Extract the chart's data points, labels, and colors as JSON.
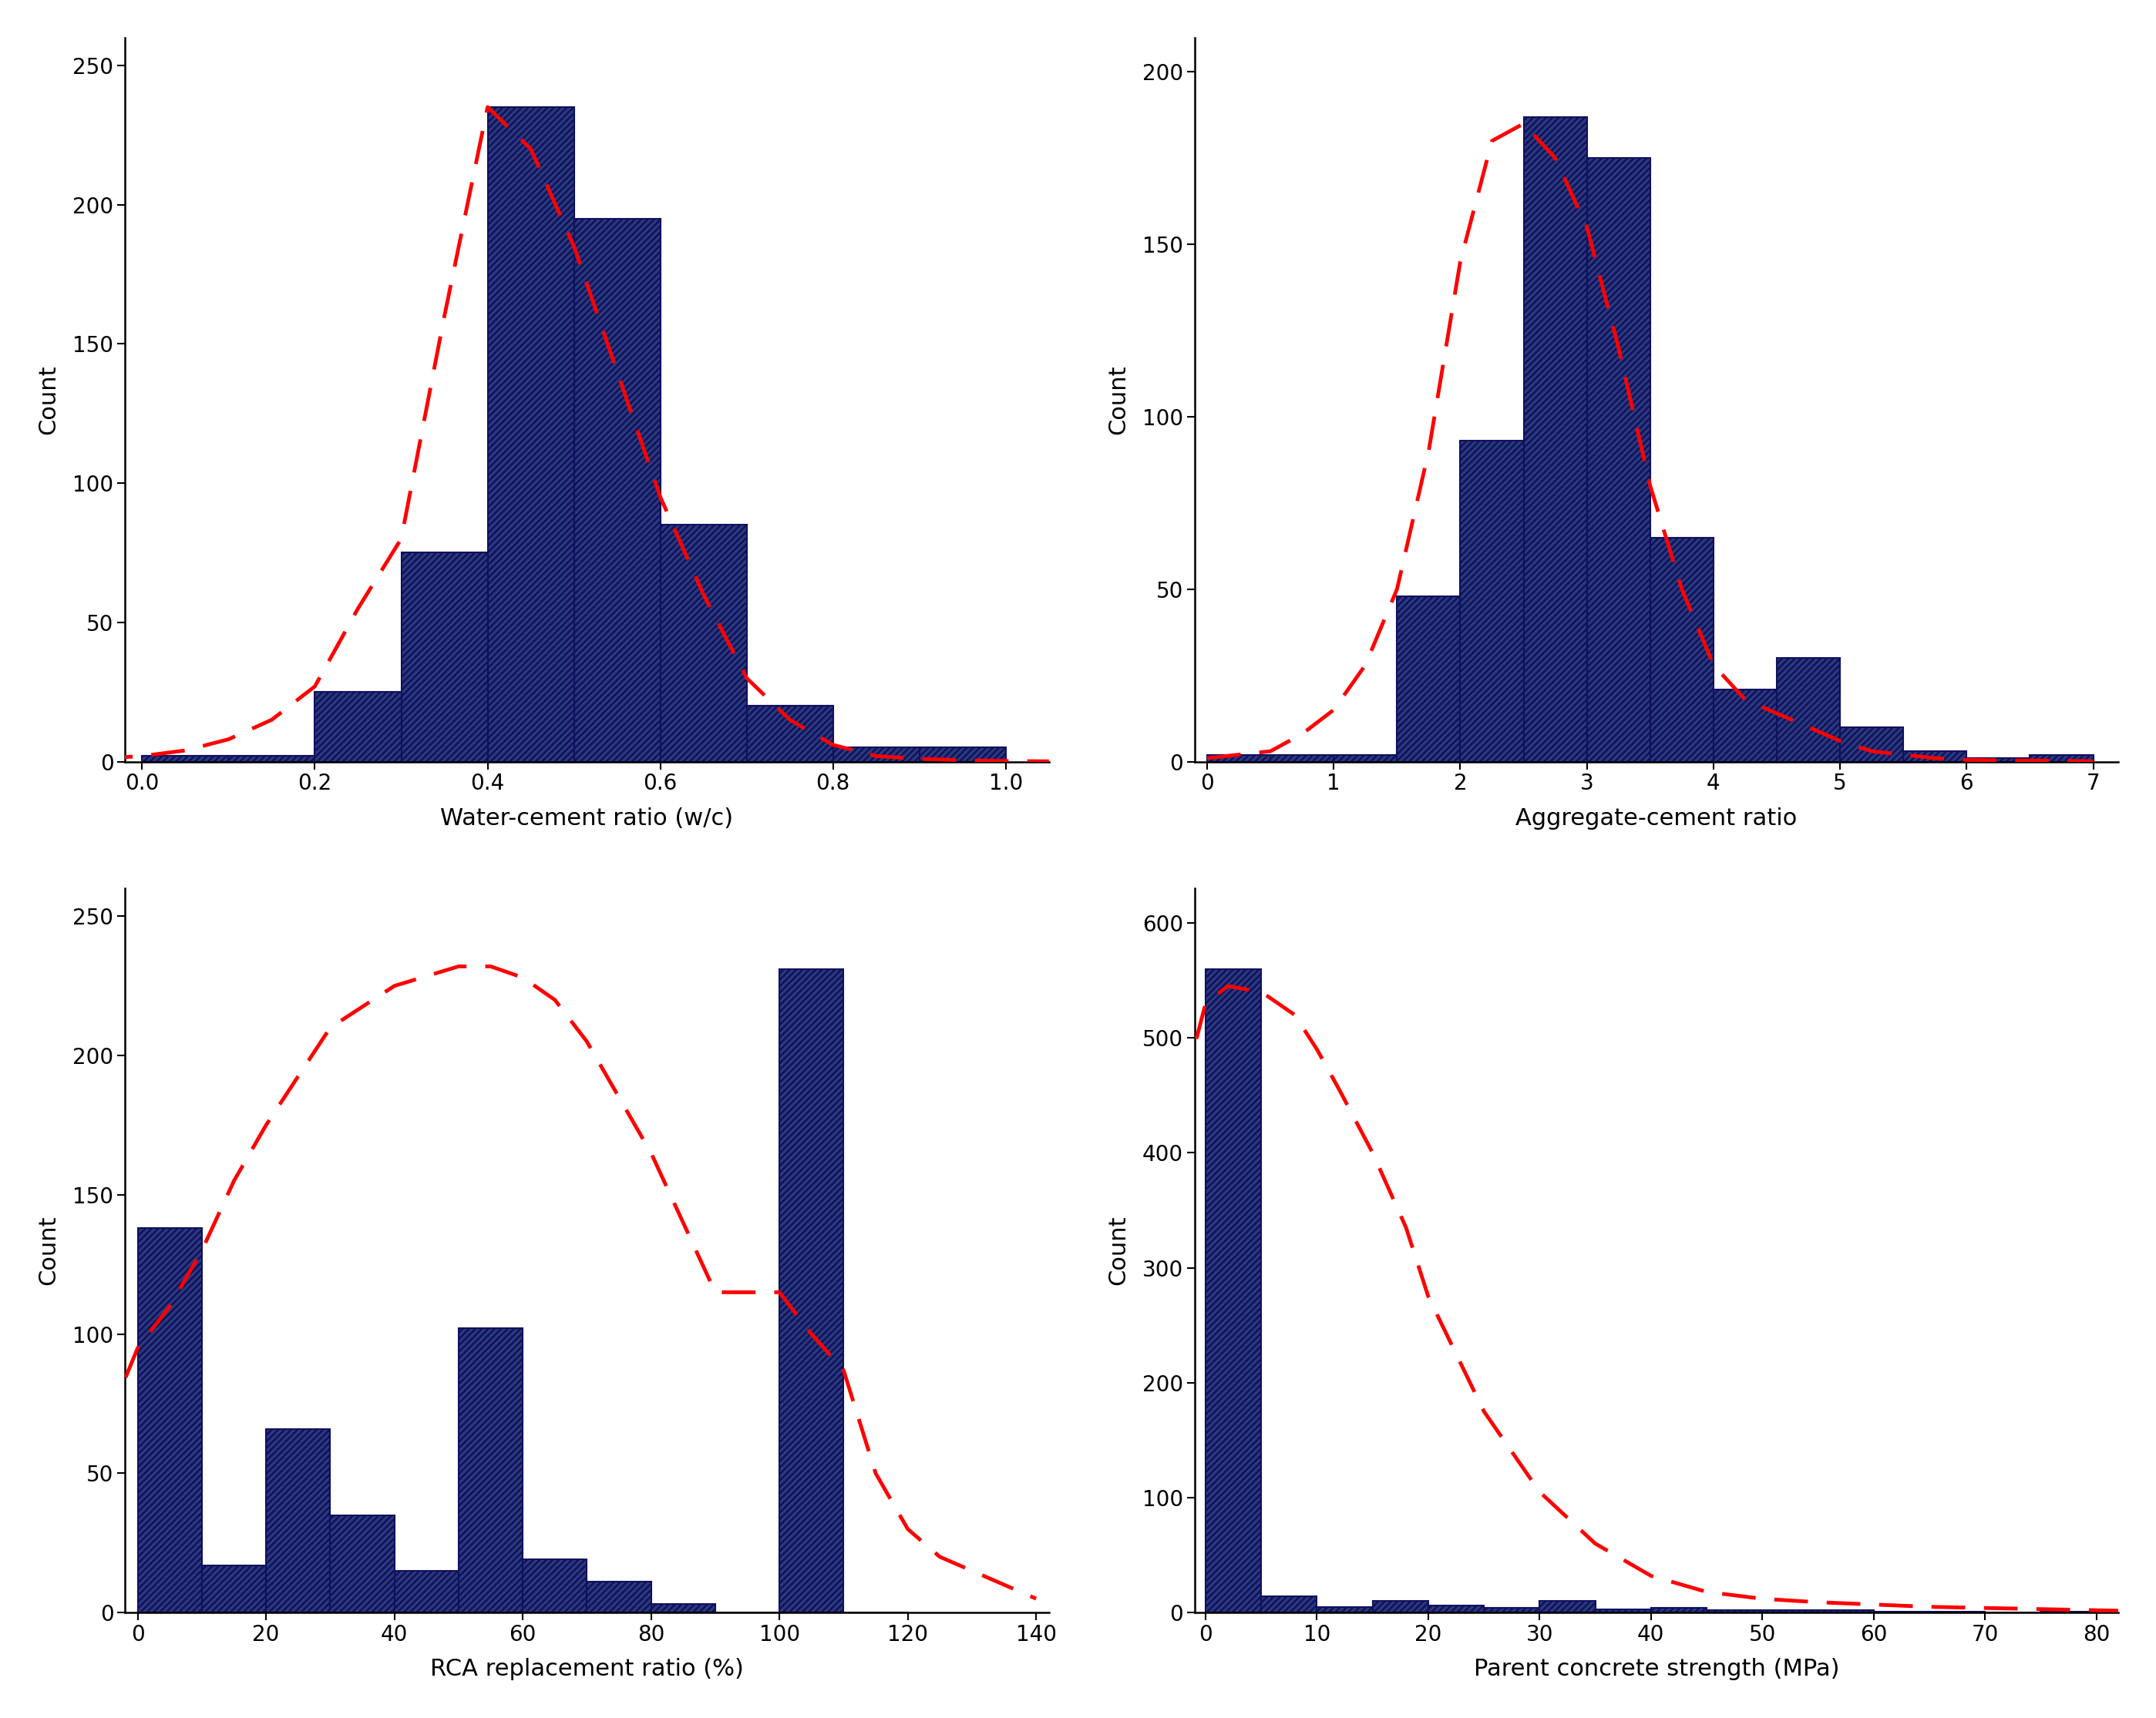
{
  "plots": [
    {
      "xlabel": "Water-cement ratio (w/c)",
      "ylabel": "Count",
      "xlim": [
        -0.02,
        1.05
      ],
      "ylim": [
        0,
        260
      ],
      "xticks": [
        0.0,
        0.2,
        0.4,
        0.6,
        0.8,
        1.0
      ],
      "yticks": [
        0,
        50,
        100,
        150,
        200,
        250
      ],
      "bar_edges": [
        0.0,
        0.1,
        0.2,
        0.3,
        0.4,
        0.5,
        0.6,
        0.7,
        0.8,
        0.9,
        1.0
      ],
      "bar_heights": [
        2,
        2,
        25,
        75,
        235,
        195,
        85,
        20,
        5,
        5
      ],
      "kde_x": [
        -0.05,
        0.0,
        0.05,
        0.1,
        0.15,
        0.2,
        0.25,
        0.3,
        0.35,
        0.4,
        0.45,
        0.5,
        0.55,
        0.6,
        0.65,
        0.7,
        0.75,
        0.8,
        0.85,
        0.9,
        0.95,
        1.0,
        1.05
      ],
      "kde_y": [
        1,
        2,
        4,
        8,
        15,
        27,
        55,
        80,
        160,
        235,
        220,
        185,
        140,
        95,
        60,
        30,
        15,
        6,
        2,
        1,
        0.5,
        0.2,
        0.1
      ]
    },
    {
      "xlabel": "Aggregate-cement ratio",
      "ylabel": "Count",
      "xlim": [
        -0.1,
        7.2
      ],
      "ylim": [
        0,
        210
      ],
      "xticks": [
        0,
        1,
        2,
        3,
        4,
        5,
        6,
        7
      ],
      "yticks": [
        0,
        50,
        100,
        150,
        200
      ],
      "bar_edges": [
        0.0,
        0.5,
        1.0,
        1.5,
        2.0,
        2.5,
        3.0,
        3.5,
        4.0,
        4.5,
        5.0,
        5.5,
        6.0,
        6.5,
        7.0
      ],
      "bar_heights": [
        2,
        2,
        2,
        48,
        93,
        187,
        175,
        65,
        21,
        30,
        10,
        3,
        1,
        2
      ],
      "kde_x": [
        0.0,
        0.25,
        0.5,
        0.75,
        1.0,
        1.25,
        1.5,
        1.75,
        2.0,
        2.25,
        2.5,
        2.75,
        3.0,
        3.25,
        3.5,
        3.75,
        4.0,
        4.25,
        4.5,
        4.75,
        5.0,
        5.25,
        5.5,
        5.75,
        6.0,
        6.5,
        7.0
      ],
      "kde_y": [
        1,
        2,
        3,
        8,
        15,
        28,
        50,
        90,
        145,
        180,
        185,
        175,
        155,
        120,
        80,
        50,
        28,
        18,
        14,
        10,
        6,
        3,
        2,
        1,
        0.5,
        0.3,
        0.1
      ]
    },
    {
      "xlabel": "RCA replacement ratio (%)",
      "ylabel": "Count",
      "xlim": [
        -2,
        142
      ],
      "ylim": [
        0,
        260
      ],
      "xticks": [
        0,
        20,
        40,
        60,
        80,
        100,
        120,
        140
      ],
      "yticks": [
        0,
        50,
        100,
        150,
        200,
        250
      ],
      "bar_edges": [
        0,
        10,
        20,
        30,
        40,
        50,
        60,
        70,
        80,
        90,
        100,
        110,
        120
      ],
      "bar_heights": [
        138,
        17,
        66,
        35,
        15,
        102,
        19,
        11,
        3,
        0,
        231,
        0
      ],
      "kde_x": [
        -5,
        0,
        5,
        10,
        15,
        20,
        30,
        40,
        50,
        55,
        60,
        65,
        70,
        75,
        80,
        85,
        90,
        95,
        100,
        105,
        110,
        115,
        120,
        125,
        130,
        135,
        140
      ],
      "kde_y": [
        67,
        95,
        110,
        130,
        155,
        175,
        210,
        225,
        232,
        232,
        228,
        220,
        205,
        185,
        165,
        140,
        115,
        115,
        115,
        100,
        87,
        50,
        30,
        20,
        15,
        10,
        5
      ]
    },
    {
      "xlabel": "Parent concrete strength (MPa)",
      "ylabel": "Count",
      "xlim": [
        -1,
        82
      ],
      "ylim": [
        0,
        630
      ],
      "xticks": [
        0,
        10,
        20,
        30,
        40,
        50,
        60,
        70,
        80
      ],
      "yticks": [
        0,
        100,
        200,
        300,
        400,
        500,
        600
      ],
      "bar_edges": [
        0,
        5,
        10,
        15,
        20,
        25,
        30,
        35,
        40,
        45,
        50,
        55,
        60,
        65,
        70,
        75,
        80
      ],
      "bar_heights": [
        560,
        14,
        5,
        10,
        6,
        4,
        10,
        3,
        4,
        2,
        2,
        2,
        1,
        1,
        0,
        1
      ],
      "kde_x": [
        -2,
        0,
        2,
        5,
        8,
        10,
        12,
        15,
        18,
        20,
        25,
        30,
        35,
        40,
        45,
        50,
        55,
        60,
        65,
        70,
        75,
        80,
        85
      ],
      "kde_y": [
        455,
        530,
        545,
        540,
        520,
        490,
        455,
        400,
        335,
        275,
        175,
        105,
        60,
        32,
        18,
        12,
        9,
        7,
        5,
        4,
        3,
        2,
        1
      ]
    }
  ],
  "bar_facecolor": "#2a3a7a",
  "bar_edgecolor": "#101060",
  "hatch": "////",
  "hatch_color": "#00dd44",
  "hatch_linewidth": 1.8,
  "kde_color": "#ff0000",
  "kde_linewidth": 3.5,
  "background_color": "#ffffff",
  "label_fontsize": 22,
  "tick_fontsize": 20,
  "spine_linewidth": 1.8
}
